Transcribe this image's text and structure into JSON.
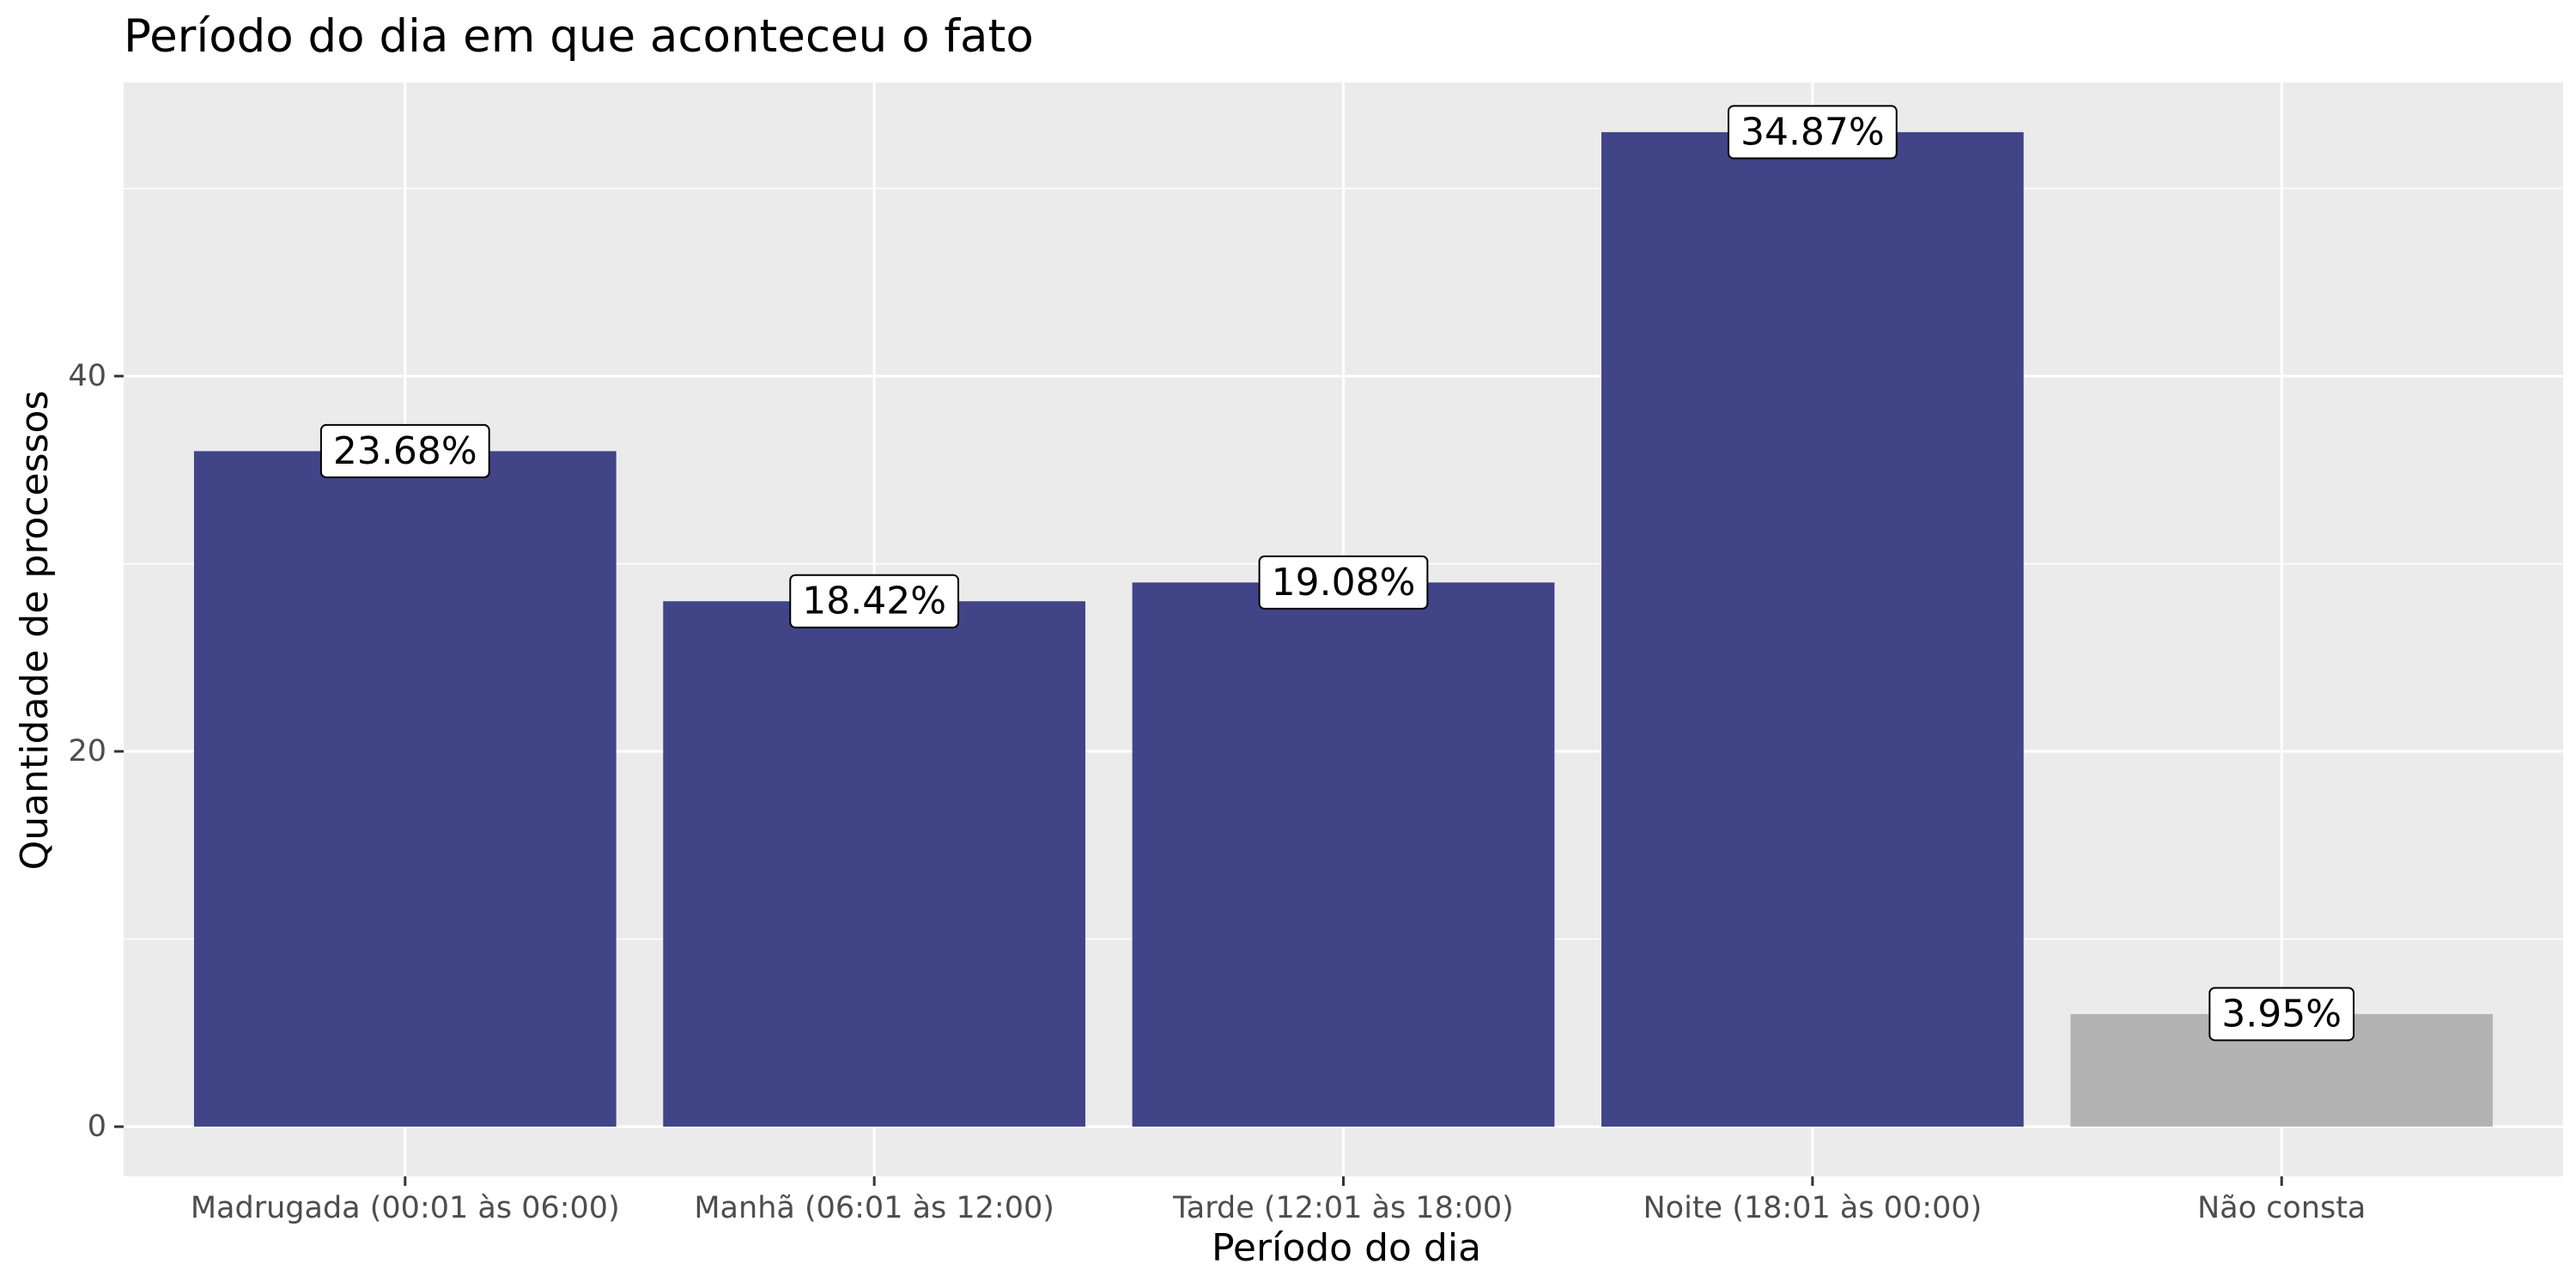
{
  "chart_data": {
    "type": "bar",
    "title": "Período do dia em que aconteceu o fato",
    "xlabel": "Período do dia",
    "ylabel": "Quantidade de processos",
    "categories": [
      "Madrugada (00:01 às 06:00)",
      "Manhã (06:01 às 12:00)",
      "Tarde (12:01 às 18:00)",
      "Noite (18:01 às 00:00)",
      "Não consta"
    ],
    "values": [
      36,
      28,
      29,
      53,
      6
    ],
    "data_labels": [
      "23.68%",
      "18.42%",
      "19.08%",
      "34.87%",
      "3.95%"
    ],
    "bar_colors": [
      "#414487",
      "#414487",
      "#414487",
      "#414487",
      "#b3b3b3"
    ],
    "ylim": [
      -2.65,
      55.65
    ],
    "yticks": [
      0,
      20,
      40
    ],
    "grid": true,
    "legend": "none",
    "panel_background": "#ebebeb",
    "grid_color": "#ffffff"
  }
}
